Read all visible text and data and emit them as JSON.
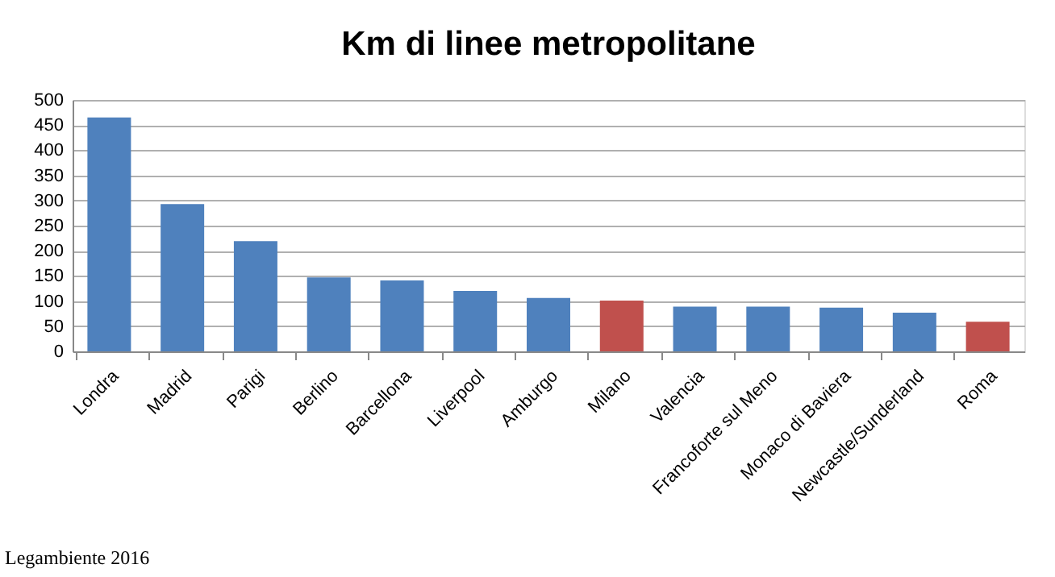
{
  "chart_data": {
    "type": "bar",
    "title": "Km di linee metropolitane",
    "categories": [
      "Londra",
      "Madrid",
      "Parigi",
      "Berlino",
      "Barcellona",
      "Liverpool",
      "Amburgo",
      "Milano",
      "Valencia",
      "Francoforte sul Meno",
      "Monaco di Baviera",
      "Newcastle/Sunderland",
      "Roma"
    ],
    "values": [
      465,
      293,
      219,
      147,
      141,
      120,
      106,
      101,
      89,
      89,
      87,
      77,
      59
    ],
    "colors": [
      "#4f81bd",
      "#4f81bd",
      "#4f81bd",
      "#4f81bd",
      "#4f81bd",
      "#4f81bd",
      "#4f81bd",
      "#c0504d",
      "#4f81bd",
      "#4f81bd",
      "#4f81bd",
      "#4f81bd",
      "#c0504d"
    ],
    "ylim": [
      0,
      500
    ],
    "yticks": [
      0,
      50,
      100,
      150,
      200,
      250,
      300,
      350,
      400,
      450,
      500
    ],
    "grid": "y",
    "annotations": [
      "Legambiente 2016"
    ]
  }
}
